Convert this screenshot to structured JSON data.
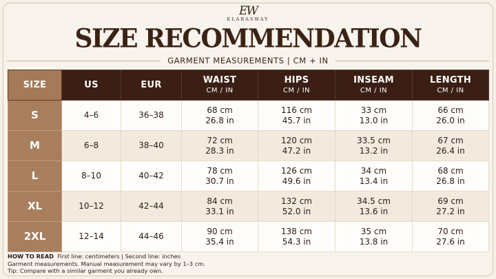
{
  "brand": {
    "monogram": "EW",
    "name": "ELARASWAY"
  },
  "title": "SIZE RECOMMENDATION",
  "subtitle": "GARMENT MEASUREMENTS | CM + IN",
  "table": {
    "headers": [
      {
        "label": "SIZE",
        "unit": ""
      },
      {
        "label": "US",
        "unit": ""
      },
      {
        "label": "EUR",
        "unit": ""
      },
      {
        "label": "WAIST",
        "unit": "CM / IN"
      },
      {
        "label": "HIPS",
        "unit": "CM / IN"
      },
      {
        "label": "INSEAM",
        "unit": "CM / IN"
      },
      {
        "label": "LENGTH",
        "unit": "CM / IN"
      }
    ],
    "rows": [
      {
        "size": "S",
        "us": "4–6",
        "eur": "36–38",
        "waist_cm": "68 cm",
        "waist_in": "26.8 in",
        "hips_cm": "116 cm",
        "hips_in": "45.7 in",
        "inseam_cm": "33 cm",
        "inseam_in": "13.0 in",
        "length_cm": "66 cm",
        "length_in": "26.0 in"
      },
      {
        "size": "M",
        "us": "6–8",
        "eur": "38–40",
        "waist_cm": "72 cm",
        "waist_in": "28.3 in",
        "hips_cm": "120 cm",
        "hips_in": "47.2 in",
        "inseam_cm": "33.5 cm",
        "inseam_in": "13.2 in",
        "length_cm": "67 cm",
        "length_in": "26.4 in"
      },
      {
        "size": "L",
        "us": "8–10",
        "eur": "40–42",
        "waist_cm": "78 cm",
        "waist_in": "30.7 in",
        "hips_cm": "126 cm",
        "hips_in": "49.6 in",
        "inseam_cm": "34 cm",
        "inseam_in": "13.4 in",
        "length_cm": "68 cm",
        "length_in": "26.8 in"
      },
      {
        "size": "XL",
        "us": "10–12",
        "eur": "42–44",
        "waist_cm": "84 cm",
        "waist_in": "33.1 in",
        "hips_cm": "132 cm",
        "hips_in": "52.0 in",
        "inseam_cm": "34.5 cm",
        "inseam_in": "13.6 in",
        "length_cm": "69 cm",
        "length_in": "27.2 in"
      },
      {
        "size": "2XL",
        "us": "12–14",
        "eur": "44–46",
        "waist_cm": "90 cm",
        "waist_in": "35.4 in",
        "hips_cm": "138 cm",
        "hips_in": "54.3 in",
        "inseam_cm": "35 cm",
        "inseam_in": "13.8 in",
        "length_cm": "70 cm",
        "length_in": "27.6 in"
      }
    ]
  },
  "notes": {
    "how_to_read_label": "HOW TO READ",
    "how_to_read_text": "First line: centimeters  |  Second line: inches",
    "line2": "Garment measurements. Manual measurement may vary by 1–3 cm.",
    "line3": "Tip: Compare with a similar garment you already own."
  },
  "colors": {
    "header_dark": "#3b1f14",
    "size_column": "#a87e5d",
    "background": "#f6f0e8"
  }
}
